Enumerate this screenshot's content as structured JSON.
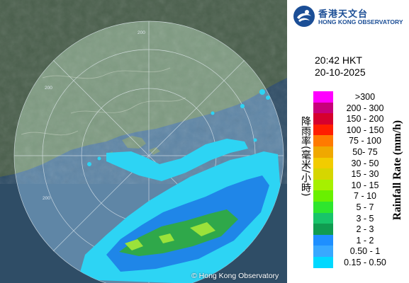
{
  "map": {
    "copyright": "© Hong Kong Observatory",
    "range_labels": [
      "200",
      "200",
      "200"
    ],
    "colors": {
      "sea_outside": "#2f4d66",
      "sea_inside": "#5f86a6",
      "land_outside": "#4a5f4c",
      "land_inside": "#7f9b82",
      "rain_light_blue": "#2dd4f4",
      "rain_blue": "#1f86e8",
      "rain_green": "#2fa84a",
      "rain_light_green": "#9be23a"
    }
  },
  "header": {
    "logo_icon": "hko-logo-icon",
    "logo_chinese": "香港天文台",
    "logo_english": "HONG KONG OBSERVATORY"
  },
  "timestamp": {
    "time": "20:42 HKT",
    "date": "20-10-2025"
  },
  "legend": {
    "label_chinese": "降雨率(毫米/小時)",
    "label_english": "Rainfall Rate (mm/h)",
    "items": [
      {
        "range": ">300",
        "color": "#ff00ff"
      },
      {
        "range": "200 - 300",
        "color": "#c8007a"
      },
      {
        "range": "150 - 200",
        "color": "#d6002e"
      },
      {
        "range": "100 - 150",
        "color": "#ff1e00"
      },
      {
        "range": "75 - 100",
        "color": "#ff7a00"
      },
      {
        "range": "50- 75",
        "color": "#f0a800"
      },
      {
        "range": "30 - 50",
        "color": "#f2cc00"
      },
      {
        "range": "15 - 30",
        "color": "#d6d600"
      },
      {
        "range": "10 - 15",
        "color": "#a6f000"
      },
      {
        "range": "7 - 10",
        "color": "#69f000"
      },
      {
        "range": "5 - 7",
        "color": "#2ee62e"
      },
      {
        "range": "3 - 5",
        "color": "#18c46a"
      },
      {
        "range": "2 - 3",
        "color": "#109c50"
      },
      {
        "range": "1 - 2",
        "color": "#1e8fff"
      },
      {
        "range": "0.50 - 1",
        "color": "#38a8ff"
      },
      {
        "range": "0.15 - 0.50",
        "color": "#00d8ff"
      }
    ]
  }
}
